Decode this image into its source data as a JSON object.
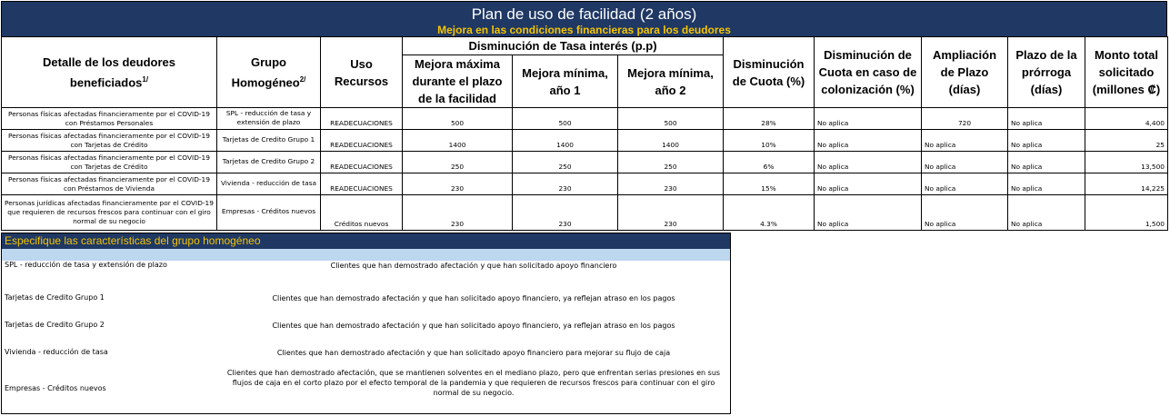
{
  "header": {
    "title": "Plan de uso de facilidad (2 años)",
    "subtitle": "Mejora en las condiciones financieras para los deudores"
  },
  "table": {
    "col_detalle": "Detalle de los deudores beneficiados",
    "col_detalle_sup": "1/",
    "col_grupo": "Grupo Homogéneo",
    "col_grupo_sup": "2/",
    "col_uso": "Uso Recursos",
    "col_tasa_group": "Disminución de Tasa interés (p.p)",
    "col_tasa_max": "Mejora máxima durante el plazo de la facilidad",
    "col_tasa_min1": "Mejora mínima, año 1",
    "col_tasa_min2": "Mejora mínima, año 2",
    "col_cuota": "Disminución de Cuota (%)",
    "col_cuota_col": "Disminución de Cuota en caso de colonización (%)",
    "col_ampliacion": "Ampliación de Plazo (días)",
    "col_prorroga": "Plazo de la prórroga (días)",
    "col_monto": "Monto total solicitado (millones ₡)",
    "rows": [
      {
        "detalle": "Personas físicas afectadas financieramente por el COVID-19 con Préstamos Personales",
        "grupo": "SPL - reducción de tasa y extensión de plazo",
        "uso": "READECUACIONES",
        "max": "500",
        "min1": "500",
        "min2": "500",
        "cuota": "28%",
        "cuota_col": "No aplica",
        "ampliacion": "720",
        "prorroga": "No aplica",
        "monto": "4,400"
      },
      {
        "detalle": "Personas físicas afectadas financieramente por el COVID-19 con Tarjetas de Crédito",
        "grupo": "Tarjetas de Credito Grupo 1",
        "uso": "READECUACIONES",
        "max": "1400",
        "min1": "1400",
        "min2": "1400",
        "cuota": "10%",
        "cuota_col": "No aplica",
        "ampliacion": "No aplica",
        "prorroga": "No aplica",
        "monto": "25"
      },
      {
        "detalle": "Personas físicas afectadas financieramente por el COVID-19 con Tarjetas de Crédito",
        "grupo": "Tarjetas de Credito Grupo 2",
        "uso": "READECUACIONES",
        "max": "250",
        "min1": "250",
        "min2": "250",
        "cuota": "6%",
        "cuota_col": "No aplica",
        "ampliacion": "No aplica",
        "prorroga": "No aplica",
        "monto": "13,500"
      },
      {
        "detalle": "Personas físicas afectadas financieramente por el COVID-19 con Préstamos de Vivienda",
        "grupo": "Vivienda - reducción de tasa",
        "uso": "READECUACIONES",
        "max": "230",
        "min1": "230",
        "min2": "230",
        "cuota": "15%",
        "cuota_col": "No aplica",
        "ampliacion": "No aplica",
        "prorroga": "No aplica",
        "monto": "14,225"
      },
      {
        "detalle": "Personas jurídicas afectadas financieramente por el COVID-19 que requieren de recursos frescos para continuar con el giro normal de su negocio",
        "grupo": "Empresas - Créditos nuevos",
        "uso": "Créditos nuevos",
        "max": "230",
        "min1": "230",
        "min2": "230",
        "cuota": "4.3%",
        "cuota_col": "No aplica",
        "ampliacion": "No aplica",
        "prorroga": "No aplica",
        "monto": "1,500"
      }
    ]
  },
  "spec": {
    "heading": "Especifique las características del grupo homogéneo",
    "rows": [
      {
        "grupo": "SPL - reducción de tasa y extensión de plazo",
        "descripcion": "Clientes que han demostrado afectación y que han solicitado apoyo financiero"
      },
      {
        "grupo": "Tarjetas de Credito Grupo 1",
        "descripcion": "Clientes que han demostrado afectación y que han solicitado apoyo financiero, ya reflejan atraso en los pagos"
      },
      {
        "grupo": "Tarjetas de Credito Grupo 2",
        "descripcion": "Clientes que han demostrado afectación y que han solicitado apoyo financiero, ya reflejan atraso en los pagos"
      },
      {
        "grupo": "Vivienda - reducción de tasa",
        "descripcion": "Clientes que han demostrado afectación y que han solicitado apoyo financiero para mejorar su flujo de caja"
      },
      {
        "grupo": "Empresas - Créditos nuevos",
        "descripcion": "Clientes que han demostrado afectación, que se mantienen solventes en el mediano plazo, pero que enfrentan serias presiones en sus flujos de caja en el corto plazo por el efecto temporal de la pandemia y que requieren de recursos frescos para continuar con el giro normal de su negocio."
      }
    ]
  }
}
